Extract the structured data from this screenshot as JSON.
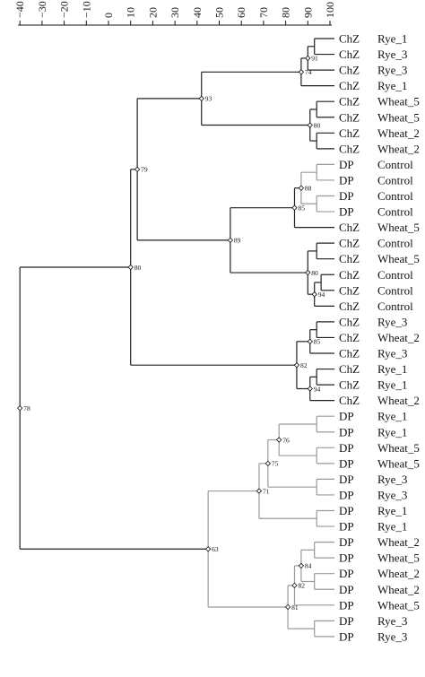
{
  "axis": {
    "ticks": [
      -40,
      -30,
      -20,
      -10,
      0,
      10,
      20,
      30,
      40,
      50,
      60,
      70,
      80,
      90,
      100
    ],
    "tick_labels": [
      "−40",
      "−30",
      "−20",
      "−10",
      "0",
      "10",
      "20",
      "30",
      "40",
      "50",
      "60",
      "70",
      "80",
      "90",
      "100"
    ]
  },
  "colors": {
    "dark": "#222222",
    "light": "#9a9a9a",
    "text": "#111111"
  },
  "leaves": [
    {
      "group": "ChZ",
      "sample": "Rye_1"
    },
    {
      "group": "ChZ",
      "sample": "Rye_3"
    },
    {
      "group": "ChZ",
      "sample": "Rye_3"
    },
    {
      "group": "ChZ",
      "sample": "Rye_1"
    },
    {
      "group": "ChZ",
      "sample": "Wheat_5"
    },
    {
      "group": "ChZ",
      "sample": "Wheat_5"
    },
    {
      "group": "ChZ",
      "sample": "Wheat_2"
    },
    {
      "group": "ChZ",
      "sample": "Wheat_2"
    },
    {
      "group": "DP",
      "sample": "Control"
    },
    {
      "group": "DP",
      "sample": "Control"
    },
    {
      "group": "DP",
      "sample": "Control"
    },
    {
      "group": "DP",
      "sample": "Control"
    },
    {
      "group": "ChZ",
      "sample": "Wheat_5"
    },
    {
      "group": "ChZ",
      "sample": "Control"
    },
    {
      "group": "ChZ",
      "sample": "Wheat_5"
    },
    {
      "group": "ChZ",
      "sample": "Control"
    },
    {
      "group": "ChZ",
      "sample": "Control"
    },
    {
      "group": "ChZ",
      "sample": "Control"
    },
    {
      "group": "ChZ",
      "sample": "Rye_3"
    },
    {
      "group": "ChZ",
      "sample": "Wheat_2"
    },
    {
      "group": "ChZ",
      "sample": "Rye_3"
    },
    {
      "group": "ChZ",
      "sample": "Rye_1"
    },
    {
      "group": "ChZ",
      "sample": "Rye_1"
    },
    {
      "group": "ChZ",
      "sample": "Wheat_2"
    },
    {
      "group": "DP",
      "sample": "Rye_1"
    },
    {
      "group": "DP",
      "sample": "Rye_1"
    },
    {
      "group": "DP",
      "sample": "Wheat_5"
    },
    {
      "group": "DP",
      "sample": "Wheat_5"
    },
    {
      "group": "DP",
      "sample": "Rye_3"
    },
    {
      "group": "DP",
      "sample": "Rye_3"
    },
    {
      "group": "DP",
      "sample": "Rye_1"
    },
    {
      "group": "DP",
      "sample": "Rye_1"
    },
    {
      "group": "DP",
      "sample": "Wheat_2"
    },
    {
      "group": "DP",
      "sample": "Wheat_5"
    },
    {
      "group": "DP",
      "sample": "Wheat_2"
    },
    {
      "group": "DP",
      "sample": "Wheat_2"
    },
    {
      "group": "DP",
      "sample": "Wheat_5"
    },
    {
      "group": "DP",
      "sample": "Rye_3"
    },
    {
      "group": "DP",
      "sample": "Rye_3"
    }
  ],
  "tree": {
    "x": -40,
    "label": "78",
    "color": "dark",
    "children": [
      {
        "x": 10,
        "label": "80",
        "color": "dark",
        "children": [
          {
            "x": 13,
            "label": "79",
            "color": "dark",
            "children": [
              {
                "x": 42,
                "label": "93",
                "color": "dark",
                "children": [
                  {
                    "x": 87,
                    "label": "74",
                    "color": "dark",
                    "children": [
                      {
                        "x": 90,
                        "label": "91",
                        "color": "dark",
                        "children": [
                          {
                            "x": 93,
                            "color": "dark",
                            "children": [
                              {
                                "leaf": 0
                              },
                              {
                                "leaf": 1
                              }
                            ]
                          },
                          {
                            "leaf": 2
                          }
                        ]
                      },
                      {
                        "leaf": 3
                      }
                    ]
                  },
                  {
                    "x": 91,
                    "label": "80",
                    "color": "dark",
                    "children": [
                      {
                        "x": 94,
                        "color": "dark",
                        "children": [
                          {
                            "leaf": 4
                          },
                          {
                            "leaf": 5
                          }
                        ]
                      },
                      {
                        "x": 94,
                        "color": "dark",
                        "children": [
                          {
                            "leaf": 6
                          },
                          {
                            "leaf": 7
                          }
                        ]
                      }
                    ]
                  }
                ]
              },
              {
                "x": 55,
                "label": "89",
                "color": "dark",
                "children": [
                  {
                    "x": 84,
                    "label": "85",
                    "color": "dark",
                    "children": [
                      {
                        "x": 87,
                        "label": "88",
                        "color": "light",
                        "children": [
                          {
                            "x": 94,
                            "color": "light",
                            "children": [
                              {
                                "leaf": 8
                              },
                              {
                                "leaf": 9
                              }
                            ]
                          },
                          {
                            "x": 94,
                            "color": "light",
                            "children": [
                              {
                                "leaf": 10
                              },
                              {
                                "leaf": 11
                              }
                            ]
                          }
                        ]
                      },
                      {
                        "leaf": 12
                      }
                    ]
                  },
                  {
                    "x": 90,
                    "label": "80",
                    "color": "dark",
                    "children": [
                      {
                        "x": 94,
                        "color": "dark",
                        "children": [
                          {
                            "leaf": 13
                          },
                          {
                            "leaf": 14
                          }
                        ]
                      },
                      {
                        "x": 93,
                        "label": "94",
                        "color": "dark",
                        "children": [
                          {
                            "x": 96,
                            "color": "dark",
                            "children": [
                              {
                                "leaf": 15
                              },
                              {
                                "leaf": 16
                              }
                            ]
                          },
                          {
                            "leaf": 17
                          }
                        ]
                      }
                    ]
                  }
                ]
              }
            ]
          },
          {
            "x": 85,
            "label": "82",
            "color": "dark",
            "children": [
              {
                "x": 91,
                "label": "85",
                "color": "dark",
                "children": [
                  {
                    "x": 94,
                    "color": "dark",
                    "children": [
                      {
                        "leaf": 18
                      },
                      {
                        "leaf": 19
                      }
                    ]
                  },
                  {
                    "leaf": 20
                  }
                ]
              },
              {
                "x": 91,
                "label": "94",
                "color": "dark",
                "children": [
                  {
                    "x": 94,
                    "color": "dark",
                    "children": [
                      {
                        "leaf": 21
                      },
                      {
                        "leaf": 22
                      }
                    ]
                  },
                  {
                    "leaf": 23
                  }
                ]
              }
            ]
          }
        ]
      },
      {
        "x": 45,
        "label": "63",
        "color": "light",
        "children": [
          {
            "x": 68,
            "label": "71",
            "color": "light",
            "children": [
              {
                "x": 72,
                "label": "75",
                "color": "light",
                "children": [
                  {
                    "x": 77,
                    "label": "76",
                    "color": "light",
                    "children": [
                      {
                        "x": 94,
                        "color": "light",
                        "children": [
                          {
                            "leaf": 24
                          },
                          {
                            "leaf": 25
                          }
                        ]
                      },
                      {
                        "x": 94,
                        "color": "light",
                        "children": [
                          {
                            "leaf": 26
                          },
                          {
                            "leaf": 27
                          }
                        ]
                      }
                    ]
                  },
                  {
                    "x": 94,
                    "color": "light",
                    "children": [
                      {
                        "leaf": 28
                      },
                      {
                        "leaf": 29
                      }
                    ]
                  }
                ]
              },
              {
                "x": 94,
                "color": "light",
                "children": [
                  {
                    "leaf": 30
                  },
                  {
                    "leaf": 31
                  }
                ]
              }
            ]
          },
          {
            "x": 81,
            "label": "81",
            "color": "light",
            "children": [
              {
                "x": 84,
                "label": "82",
                "color": "light",
                "children": [
                  {
                    "x": 87,
                    "label": "84",
                    "color": "light",
                    "children": [
                      {
                        "x": 93,
                        "color": "light",
                        "children": [
                          {
                            "leaf": 32
                          },
                          {
                            "leaf": 33
                          }
                        ]
                      },
                      {
                        "x": 93,
                        "color": "light",
                        "children": [
                          {
                            "leaf": 34
                          },
                          {
                            "leaf": 35
                          }
                        ]
                      }
                    ]
                  },
                  {
                    "leaf": 36
                  }
                ]
              },
              {
                "x": 93,
                "color": "light",
                "children": [
                  {
                    "leaf": 37
                  },
                  {
                    "leaf": 38
                  }
                ]
              }
            ]
          }
        ]
      }
    ]
  }
}
